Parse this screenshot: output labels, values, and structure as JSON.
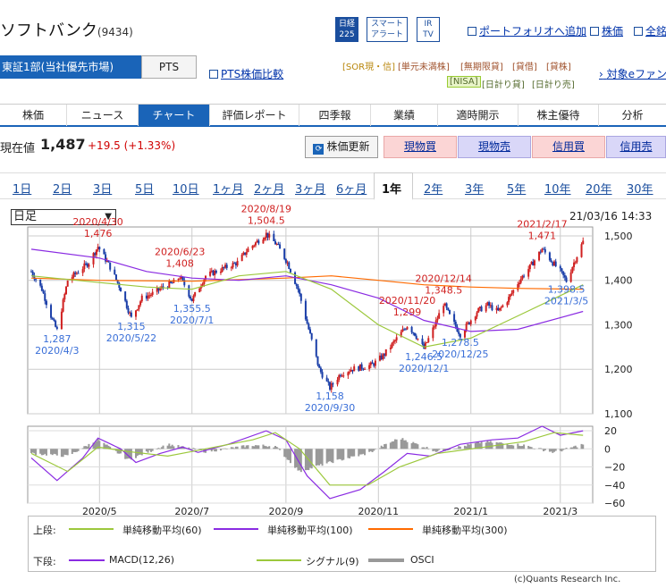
{
  "header": {
    "title": "ソフトバンク",
    "code": "(9434)",
    "badges": [
      {
        "name": "nikkei225",
        "lines": [
          "日経",
          "225"
        ]
      },
      {
        "name": "smart-alert",
        "lines": [
          "スマート",
          "アラート"
        ]
      },
      {
        "name": "ir-tv",
        "lines": [
          "IR",
          "TV"
        ]
      }
    ],
    "links": {
      "portfolio": "ポートフォリオへ追加",
      "stock_price": "株価",
      "all": "全銘"
    }
  },
  "market": {
    "label": "東証1部(当社優先市場)",
    "pts": "PTS",
    "pts_compare": "PTS株価比較"
  },
  "tags_row1": [
    "[SOR現・信]",
    "[単元未満株]",
    "[無期限貸]",
    "[貸借]",
    "[貸株]"
  ],
  "tags_row2": [
    "[NISA]",
    "[日計り貸]",
    "[日計り売]"
  ],
  "e_friend_link": "対象eファン",
  "tabs": [
    "株価",
    "ニュース",
    "チャート",
    "評価レポート",
    "四季報",
    "業績",
    "適時開示",
    "株主優待",
    "分析"
  ],
  "active_tab": "チャート",
  "price": {
    "label": "現在値",
    "value": "1,487",
    "change": "+19.5 (+1.33%)"
  },
  "actions": {
    "update": "株価更新",
    "spot_buy": "現物買",
    "spot_sell": "現物売",
    "margin_buy": "信用買",
    "margin_sell": "信用売"
  },
  "periods": [
    "1日",
    "2日",
    "3日",
    "5日",
    "10日",
    "1ヶ月",
    "2ヶ月",
    "3ヶ月",
    "6ヶ月",
    "1年",
    "2年",
    "3年",
    "5年",
    "10年",
    "20年",
    "30年"
  ],
  "active_period": "1年",
  "chart_select": {
    "value": "日足"
  },
  "timestamp": "21/03/16 14:33",
  "colors": {
    "brand": "#1a64b8",
    "up": "#d02020",
    "down": "#1a3ea8",
    "ma60": "#9cc83c",
    "ma100": "#8a2be2",
    "ma300": "#ff6a00",
    "annot_high": "#d02020",
    "annot_low": "#3a6fd8"
  },
  "chart_data": [
    {
      "type": "candlestick",
      "title": "",
      "x_ticks": [
        "2020/5",
        "2020/7",
        "2020/9",
        "2020/11",
        "2021/1",
        "2021/3"
      ],
      "ylim": [
        1100,
        1520
      ],
      "y_ticks": [
        "1,500",
        "1,400",
        "1,300",
        "1,200",
        "1,100"
      ],
      "y_tick_values": [
        1500,
        1400,
        1300,
        1200,
        1100
      ],
      "ohlc_path": [
        [
          "2020-03-17",
          1420
        ],
        [
          "2020-03-24",
          1380
        ],
        [
          "2020-03-31",
          1310
        ],
        [
          "2020-04-03",
          1287
        ],
        [
          "2020-04-10",
          1400
        ],
        [
          "2020-04-17",
          1420
        ],
        [
          "2020-04-24",
          1440
        ],
        [
          "2020-04-30",
          1476
        ],
        [
          "2020-05-08",
          1430
        ],
        [
          "2020-05-15",
          1380
        ],
        [
          "2020-05-22",
          1315
        ],
        [
          "2020-05-29",
          1360
        ],
        [
          "2020-06-05",
          1370
        ],
        [
          "2020-06-12",
          1385
        ],
        [
          "2020-06-19",
          1395
        ],
        [
          "2020-06-23",
          1408
        ],
        [
          "2020-06-26",
          1390
        ],
        [
          "2020-07-01",
          1355.5
        ],
        [
          "2020-07-10",
          1410
        ],
        [
          "2020-07-17",
          1420
        ],
        [
          "2020-07-24",
          1430
        ],
        [
          "2020-07-31",
          1440
        ],
        [
          "2020-08-07",
          1470
        ],
        [
          "2020-08-14",
          1490
        ],
        [
          "2020-08-19",
          1504.5
        ],
        [
          "2020-08-26",
          1480
        ],
        [
          "2020-09-02",
          1440
        ],
        [
          "2020-09-09",
          1380
        ],
        [
          "2020-09-16",
          1290
        ],
        [
          "2020-09-23",
          1200
        ],
        [
          "2020-09-30",
          1158
        ],
        [
          "2020-10-07",
          1190
        ],
        [
          "2020-10-14",
          1200
        ],
        [
          "2020-10-21",
          1205
        ],
        [
          "2020-10-28",
          1210
        ],
        [
          "2020-11-04",
          1230
        ],
        [
          "2020-11-11",
          1260
        ],
        [
          "2020-11-20",
          1299
        ],
        [
          "2020-11-25",
          1280
        ],
        [
          "2020-12-01",
          1246.5
        ],
        [
          "2020-12-07",
          1290
        ],
        [
          "2020-12-14",
          1348.5
        ],
        [
          "2020-12-18",
          1320
        ],
        [
          "2020-12-25",
          1278.5
        ],
        [
          "2021-01-05",
          1330
        ],
        [
          "2021-01-12",
          1345
        ],
        [
          "2021-01-19",
          1330
        ],
        [
          "2021-01-26",
          1360
        ],
        [
          "2021-02-02",
          1400
        ],
        [
          "2021-02-09",
          1430
        ],
        [
          "2021-02-17",
          1471
        ],
        [
          "2021-02-24",
          1440
        ],
        [
          "2021-03-01",
          1420
        ],
        [
          "2021-03-05",
          1398.5
        ],
        [
          "2021-03-10",
          1440
        ],
        [
          "2021-03-16",
          1487
        ]
      ],
      "ma60": [
        [
          "2020-03-17",
          1410
        ],
        [
          "2020-05-01",
          1395
        ],
        [
          "2020-06-01",
          1385
        ],
        [
          "2020-07-01",
          1380
        ],
        [
          "2020-08-01",
          1410
        ],
        [
          "2020-09-01",
          1420
        ],
        [
          "2020-10-01",
          1380
        ],
        [
          "2020-11-01",
          1300
        ],
        [
          "2020-12-01",
          1250
        ],
        [
          "2021-01-01",
          1270
        ],
        [
          "2021-02-01",
          1320
        ],
        [
          "2021-03-16",
          1390
        ]
      ],
      "ma100": [
        [
          "2020-03-17",
          1470
        ],
        [
          "2020-05-01",
          1450
        ],
        [
          "2020-06-01",
          1420
        ],
        [
          "2020-07-01",
          1405
        ],
        [
          "2020-08-01",
          1400
        ],
        [
          "2020-09-01",
          1410
        ],
        [
          "2020-10-01",
          1390
        ],
        [
          "2020-11-01",
          1360
        ],
        [
          "2020-12-01",
          1310
        ],
        [
          "2021-01-01",
          1285
        ],
        [
          "2021-02-01",
          1290
        ],
        [
          "2021-03-16",
          1330
        ]
      ],
      "ma300": [
        [
          "2020-03-17",
          1405
        ],
        [
          "2020-05-01",
          1400
        ],
        [
          "2020-07-01",
          1398
        ],
        [
          "2020-09-01",
          1405
        ],
        [
          "2020-10-01",
          1410
        ],
        [
          "2020-11-01",
          1400
        ],
        [
          "2020-12-01",
          1390
        ],
        [
          "2021-01-01",
          1385
        ],
        [
          "2021-02-01",
          1382
        ],
        [
          "2021-03-16",
          1380
        ]
      ],
      "annotations": [
        {
          "date": "2020/4/30",
          "value": "1,476",
          "kind": "high"
        },
        {
          "date": "2020/4/3",
          "value": "1,287",
          "kind": "low"
        },
        {
          "date": "2020/6/23",
          "value": "1,408",
          "kind": "high"
        },
        {
          "date": "2020/5/22",
          "value": "1,315",
          "kind": "low"
        },
        {
          "date": "2020/7/1",
          "value": "1,355.5",
          "kind": "low"
        },
        {
          "date": "2020/8/19",
          "value": "1,504.5",
          "kind": "high"
        },
        {
          "date": "2020/9/30",
          "value": "1,158",
          "kind": "low"
        },
        {
          "date": "2020/11/20",
          "value": "1,299",
          "kind": "high"
        },
        {
          "date": "2020/12/1",
          "value": "1,246.5",
          "kind": "low"
        },
        {
          "date": "2020/12/14",
          "value": "1,348.5",
          "kind": "high"
        },
        {
          "date": "2020/12/25",
          "value": "1,278.5",
          "kind": "low"
        },
        {
          "date": "2021/2/17",
          "value": "1,471",
          "kind": "high"
        },
        {
          "date": "2021/3/5",
          "value": "1,398.5",
          "kind": "low"
        }
      ]
    },
    {
      "type": "line",
      "title": "",
      "x_ticks": [
        "2020/5",
        "2020/7",
        "2020/9",
        "2020/11",
        "2021/1",
        "2021/3"
      ],
      "ylim": [
        -60,
        25
      ],
      "y_ticks": [
        "20",
        "0",
        "−20",
        "−40",
        "−60"
      ],
      "y_tick_values": [
        20,
        0,
        -20,
        -40,
        -60
      ],
      "macd": [
        [
          "2020-03-17",
          -10
        ],
        [
          "2020-04-03",
          -35
        ],
        [
          "2020-04-20",
          -10
        ],
        [
          "2020-04-30",
          12
        ],
        [
          "2020-05-15",
          0
        ],
        [
          "2020-05-25",
          -15
        ],
        [
          "2020-06-10",
          -5
        ],
        [
          "2020-06-25",
          2
        ],
        [
          "2020-07-05",
          -4
        ],
        [
          "2020-07-25",
          5
        ],
        [
          "2020-08-19",
          20
        ],
        [
          "2020-09-01",
          10
        ],
        [
          "2020-09-15",
          -30
        ],
        [
          "2020-09-30",
          -55
        ],
        [
          "2020-10-20",
          -45
        ],
        [
          "2020-11-05",
          -25
        ],
        [
          "2020-11-20",
          -5
        ],
        [
          "2020-12-05",
          -8
        ],
        [
          "2020-12-25",
          5
        ],
        [
          "2021-01-15",
          10
        ],
        [
          "2021-02-01",
          12
        ],
        [
          "2021-02-17",
          25
        ],
        [
          "2021-03-01",
          15
        ],
        [
          "2021-03-16",
          20
        ]
      ],
      "signal": [
        [
          "2020-03-17",
          -5
        ],
        [
          "2020-04-10",
          -25
        ],
        [
          "2020-04-30",
          2
        ],
        [
          "2020-05-20",
          -3
        ],
        [
          "2020-06-15",
          -8
        ],
        [
          "2020-07-10",
          0
        ],
        [
          "2020-08-10",
          10
        ],
        [
          "2020-08-25",
          18
        ],
        [
          "2020-09-10",
          0
        ],
        [
          "2020-09-30",
          -40
        ],
        [
          "2020-10-25",
          -40
        ],
        [
          "2020-11-15",
          -20
        ],
        [
          "2020-12-10",
          -5
        ],
        [
          "2021-01-10",
          2
        ],
        [
          "2021-02-05",
          8
        ],
        [
          "2021-02-25",
          18
        ],
        [
          "2021-03-16",
          15
        ]
      ],
      "osci": [
        [
          "2020-03-17",
          -5
        ],
        [
          "2020-04-10",
          -8
        ],
        [
          "2020-04-30",
          10
        ],
        [
          "2020-05-20",
          -12
        ],
        [
          "2020-06-15",
          5
        ],
        [
          "2020-07-10",
          -3
        ],
        [
          "2020-08-10",
          4
        ],
        [
          "2020-08-25",
          3
        ],
        [
          "2020-09-10",
          -25
        ],
        [
          "2020-09-30",
          -15
        ],
        [
          "2020-10-25",
          -5
        ],
        [
          "2020-11-15",
          12
        ],
        [
          "2020-12-10",
          -3
        ],
        [
          "2021-01-10",
          8
        ],
        [
          "2021-02-05",
          4
        ],
        [
          "2021-02-25",
          -4
        ],
        [
          "2021-03-16",
          5
        ]
      ]
    }
  ],
  "legend": {
    "upper_label": "上段:",
    "lower_label": "下段:",
    "upper": [
      {
        "name": "単純移動平均(60)",
        "color": "#9cc83c"
      },
      {
        "name": "単純移動平均(100)",
        "color": "#8a2be2"
      },
      {
        "name": "単純移動平均(300)",
        "color": "#ff6a00"
      }
    ],
    "lower": [
      {
        "name": "MACD(12,26)",
        "color": "#8a2be2"
      },
      {
        "name": "シグナル(9)",
        "color": "#9cc83c"
      },
      {
        "name": "OSCI",
        "color": "#999999"
      }
    ]
  },
  "copyright": "(c)Quants Research Inc."
}
